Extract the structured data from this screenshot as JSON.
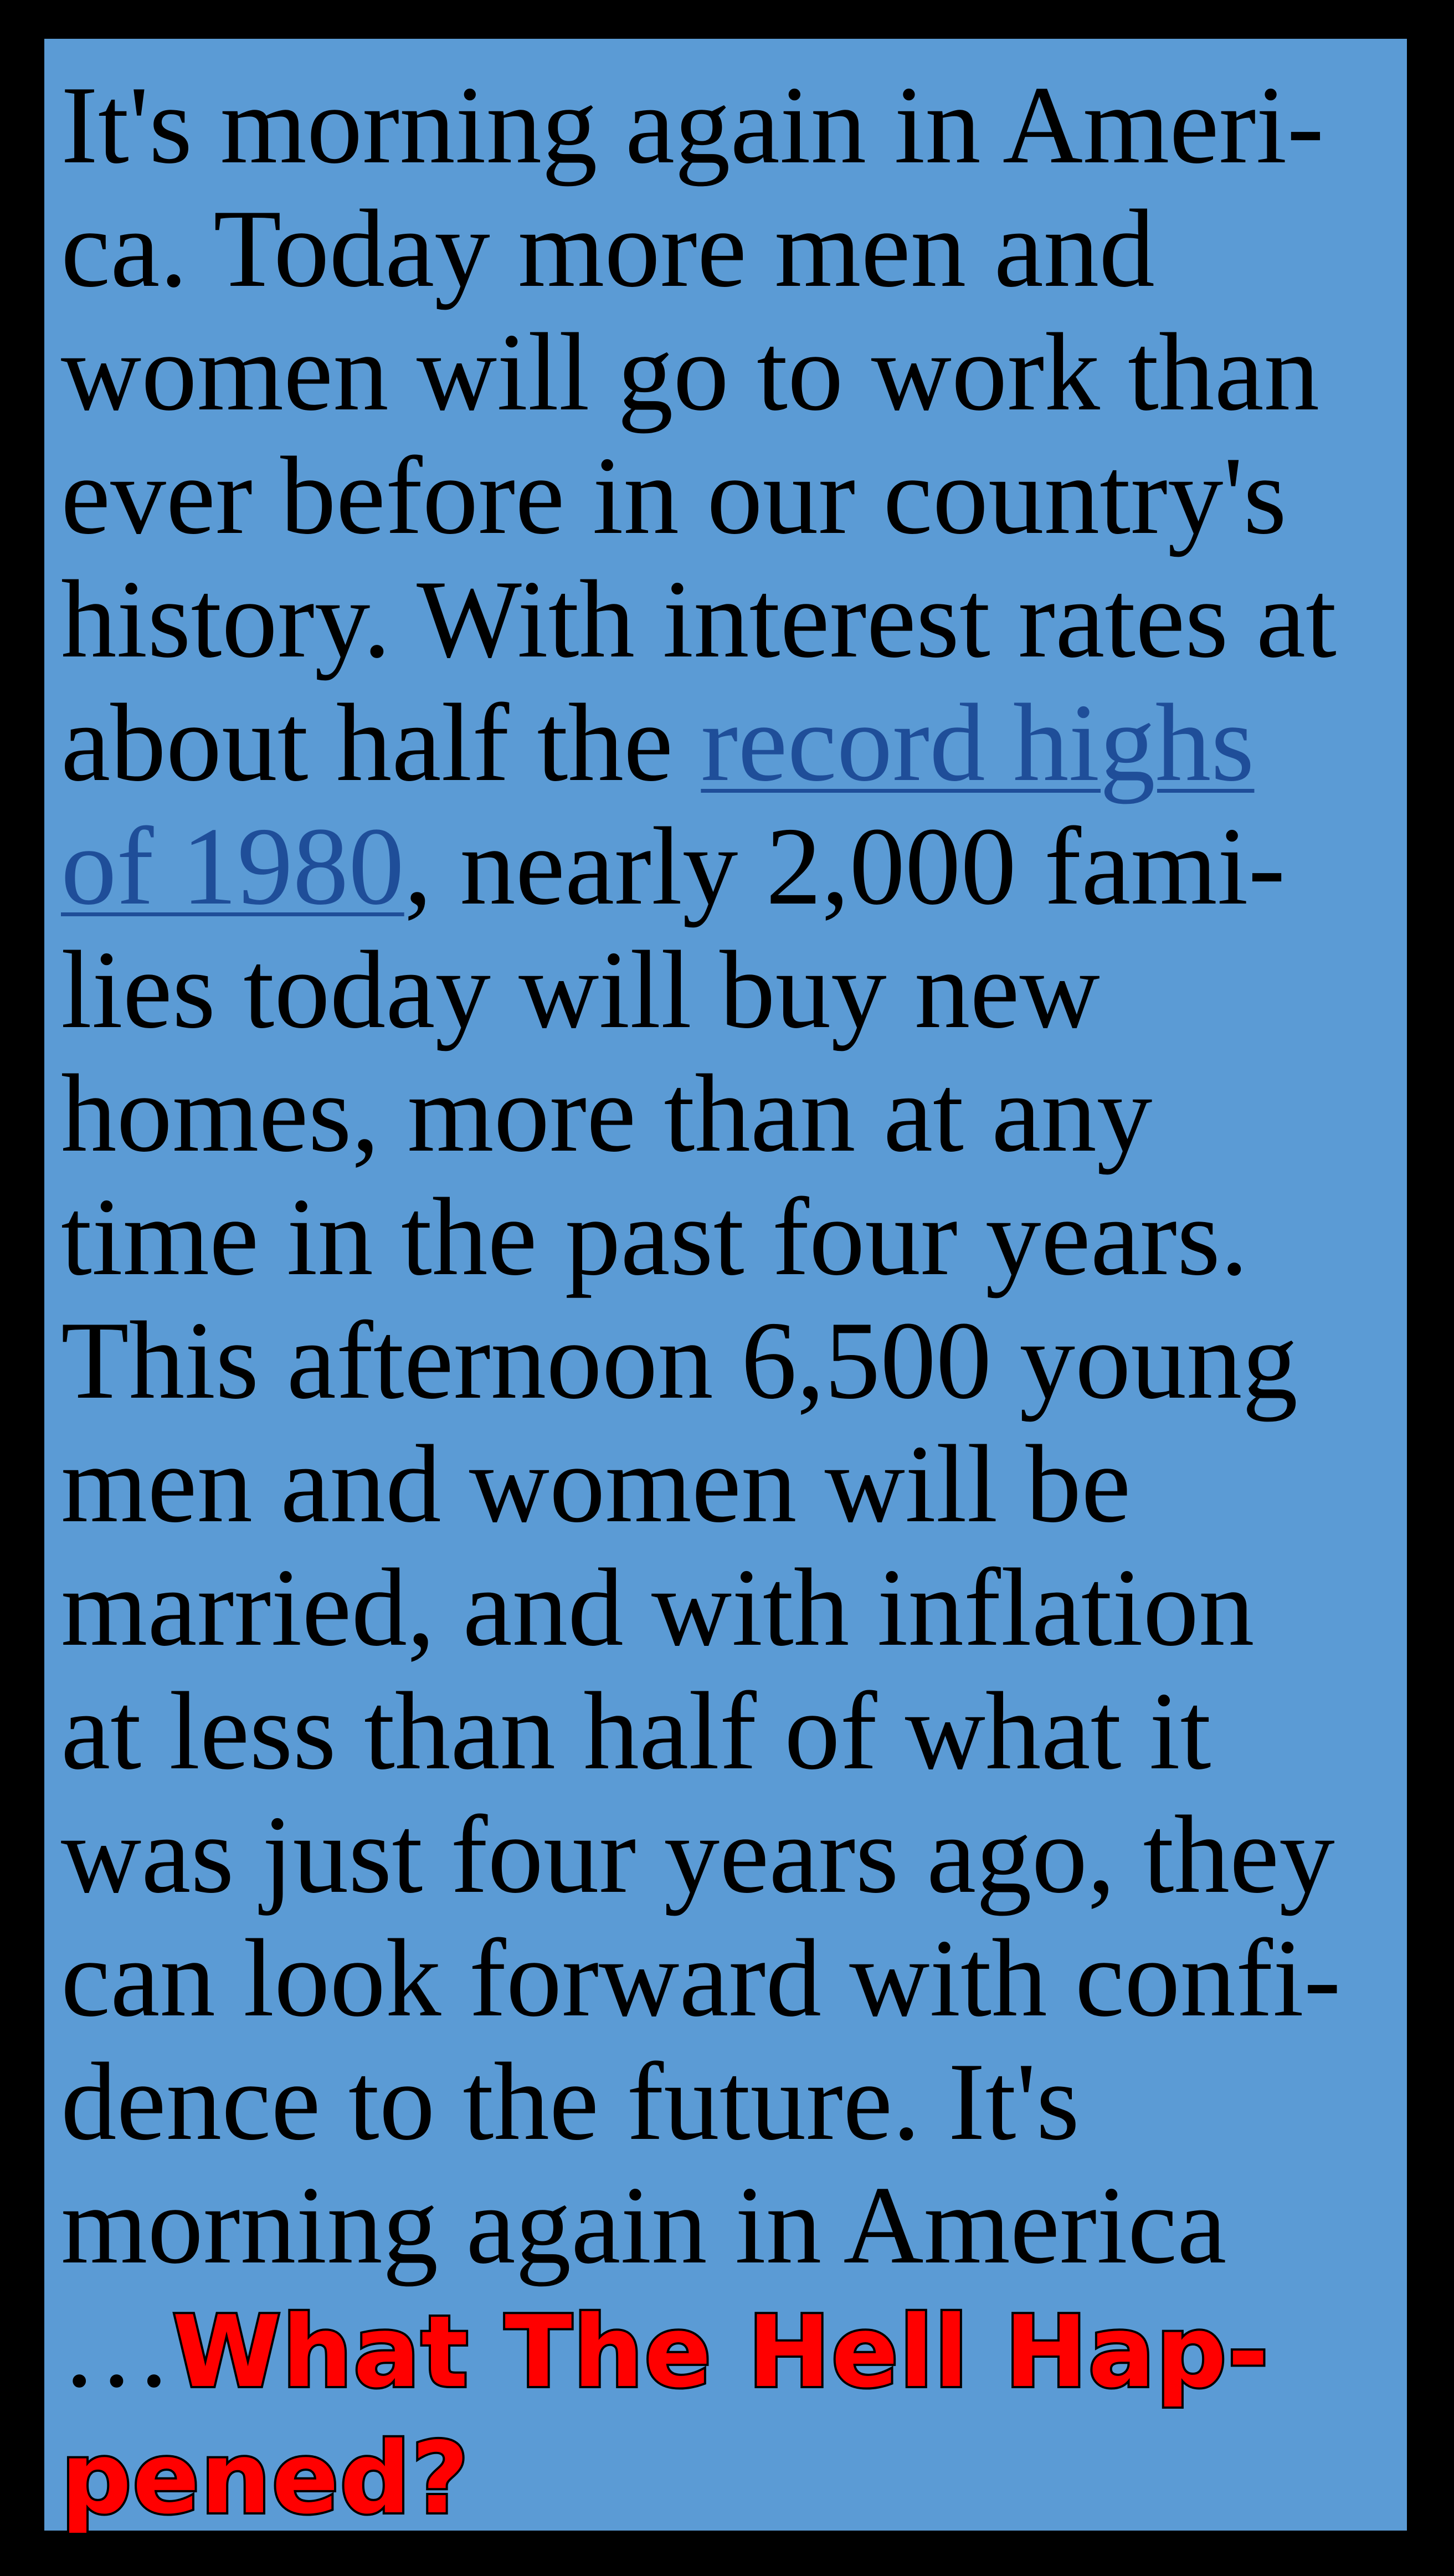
{
  "quote": {
    "lines": [
      "It's morning again in Ameri-",
      "ca. Today more men and",
      "women will go to work than",
      "ever before in our country's",
      "history. With interest rates at"
    ],
    "line6_before": "about half the ",
    "link_part1": "record highs",
    "link_part2": "of 1980",
    "line7_after": ", nearly 2,000 fami-",
    "lines_after": [
      "lies today will buy new",
      "homes, more than at any",
      "time in the past four years.",
      "This afternoon 6,500 young",
      "men and women will be",
      "married, and with inflation",
      "at less than half of what it",
      "was just four years ago, they",
      "can look forward with confi-",
      "dence to the future. It's",
      "morning again in America"
    ],
    "ellipsis": "…",
    "punchline_part1": "What The Hell Hap-",
    "punchline_part2": "pened?"
  },
  "colors": {
    "background": "#000000",
    "panel": "#5b9bd5",
    "body_text": "#000000",
    "link": "#1f4e99",
    "punchline": "#ff0000"
  }
}
